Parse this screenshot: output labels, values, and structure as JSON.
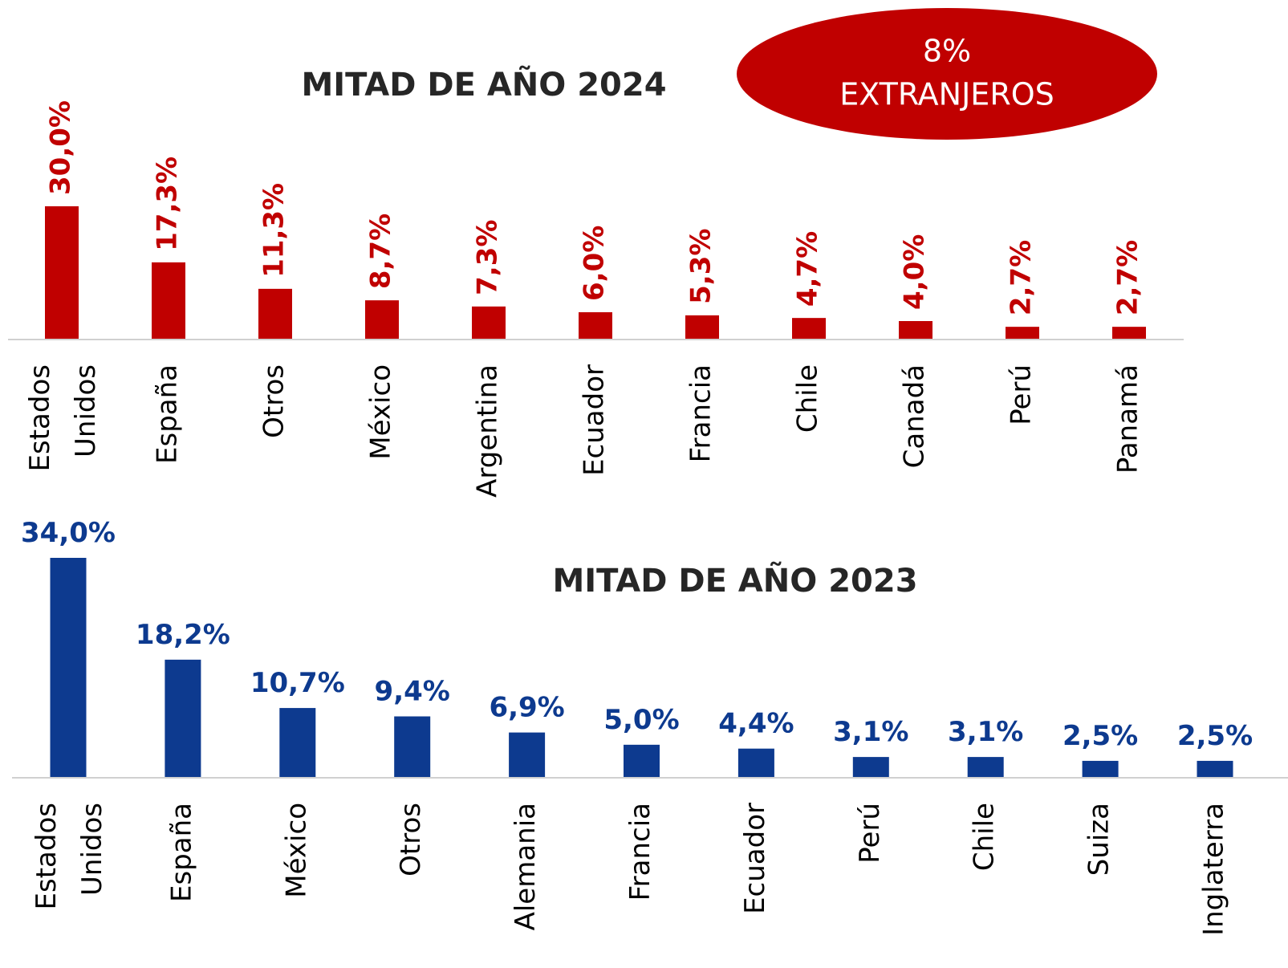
{
  "chart_data": [
    {
      "type": "bar",
      "title": "MITAD DE AÑO 2024",
      "annotation": [
        "8%",
        "EXTRANJEROS"
      ],
      "categories": [
        "Estados Unidos",
        "España",
        "Otros",
        "México",
        "Argentina",
        "Ecuador",
        "Francia",
        "Chile",
        "Canadá",
        "Perú",
        "Panamá"
      ],
      "values": [
        30.0,
        17.3,
        11.3,
        8.7,
        7.3,
        6.0,
        5.3,
        4.7,
        4.0,
        2.7,
        2.7
      ],
      "value_labels": [
        "30,0%",
        "17,3%",
        "11,3%",
        "8,7%",
        "7,3%",
        "6,0%",
        "5,3%",
        "4,7%",
        "4,0%",
        "2,7%",
        "2,7%"
      ],
      "color": "#c00000",
      "ylim": [
        0,
        30
      ]
    },
    {
      "type": "bar",
      "title": "MITAD DE AÑO 2023",
      "categories": [
        "Estados Unidos",
        "España",
        "México",
        "Otros",
        "Alemania",
        "Francia",
        "Ecuador",
        "Perú",
        "Chile",
        "Suiza",
        "Inglaterra"
      ],
      "values": [
        34.0,
        18.2,
        10.7,
        9.4,
        6.9,
        5.0,
        4.4,
        3.1,
        3.1,
        2.5,
        2.5
      ],
      "value_labels": [
        "34,0%",
        "18,2%",
        "10,7%",
        "9,4%",
        "6,9%",
        "5,0%",
        "4,4%",
        "3,1%",
        "3,1%",
        "2,5%",
        "2,5%"
      ],
      "color": "#0d3a8f",
      "ylim": [
        0,
        34
      ]
    }
  ]
}
